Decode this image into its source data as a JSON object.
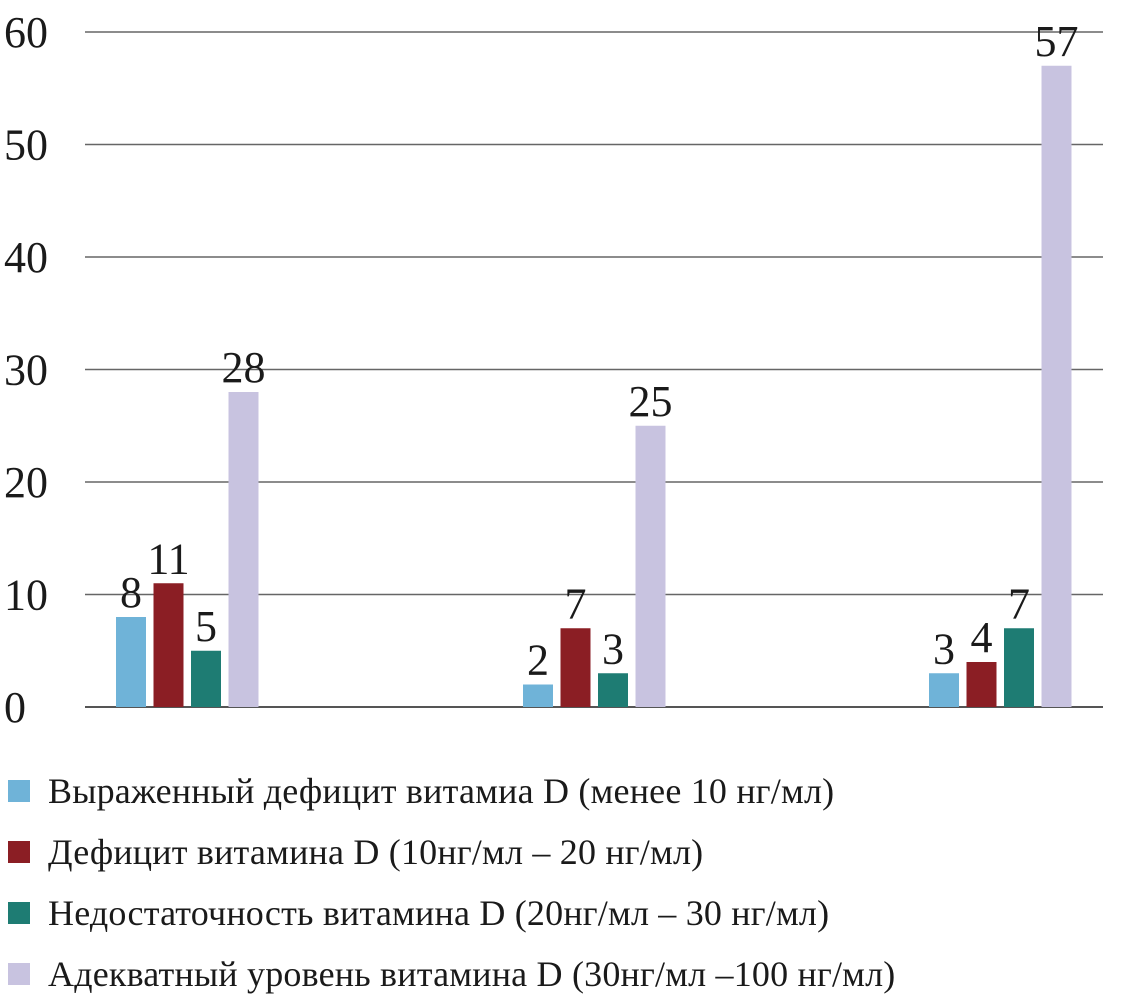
{
  "chart_data": {
    "type": "bar",
    "categories": [
      "",
      "",
      ""
    ],
    "series": [
      {
        "name": "Выраженный дефицит витамиа  D (менее 10 нг/мл)",
        "color": "#6fb3d8",
        "values": [
          8,
          2,
          3
        ]
      },
      {
        "name": "Дефицит витамина  D (10нг/мл – 20 нг/мл)",
        "color": "#8b1e24",
        "values": [
          11,
          7,
          4
        ]
      },
      {
        "name": "Недостаточность витамина  D (20нг/мл – 30 нг/мл)",
        "color": "#1e7c73",
        "values": [
          5,
          3,
          7
        ]
      },
      {
        "name": "Адекватный уровень витамина  D (30нг/мл –100 нг/мл)",
        "color": "#c8c3e0",
        "values": [
          28,
          25,
          57
        ]
      }
    ],
    "ylim": [
      0,
      60
    ],
    "yticks": [
      0,
      10,
      20,
      30,
      40,
      50,
      60
    ],
    "grid": true,
    "legend_position": "bottom",
    "data_labels": true
  }
}
